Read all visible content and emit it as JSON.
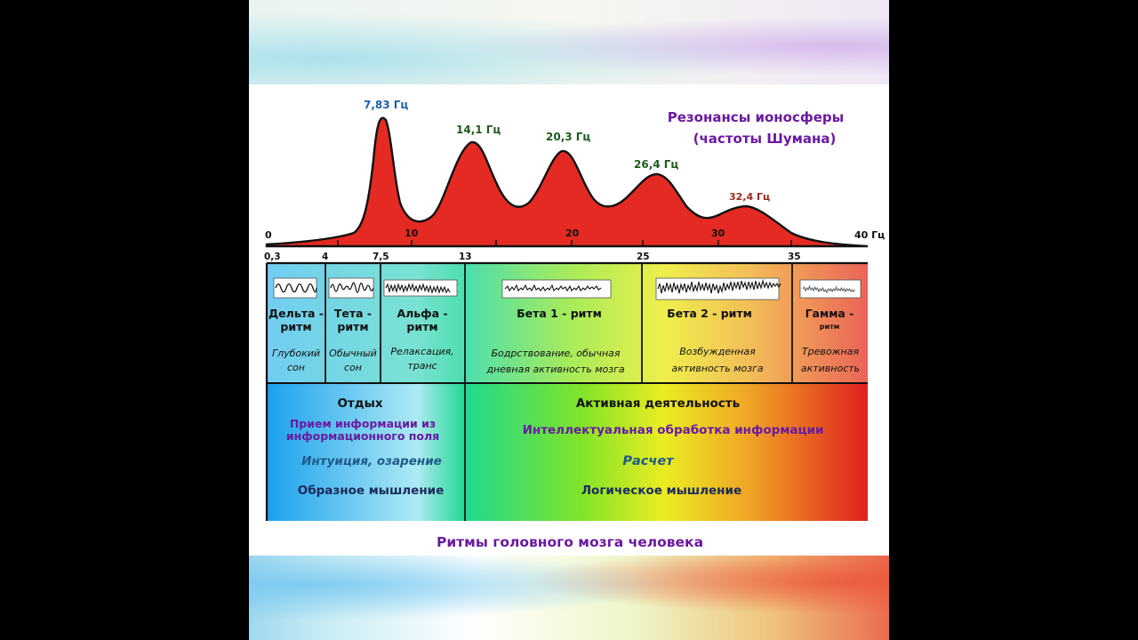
{
  "title": [
    "Резонансы ионосферы",
    "(частоты Шумана)"
  ],
  "peaks": [
    {
      "label": "7,83 Гц",
      "color": "#1f5fb0"
    },
    {
      "label": "14,1 Гц",
      "color": "#1f5a1f"
    },
    {
      "label": "20,3 Гц",
      "color": "#1f5a1f"
    },
    {
      "label": "26,4 Гц",
      "color": "#1f5a1f"
    },
    {
      "label": "32,4 Гц",
      "color": "#9a2a1a"
    }
  ],
  "top_axis_ticks": [
    "0",
    "10",
    "20",
    "30",
    "40 Гц"
  ],
  "bottom_axis_ticks": [
    "0,3",
    "4",
    "7,5",
    "13",
    "25",
    "35"
  ],
  "rhythms": [
    {
      "name": [
        "Дельта -",
        "ритм"
      ],
      "state": [
        "Глубокий",
        "сон"
      ]
    },
    {
      "name": [
        "Тета -",
        "ритм"
      ],
      "state": [
        "Обычный",
        "сон"
      ]
    },
    {
      "name": [
        "Альфа -",
        "ритм"
      ],
      "state": [
        "Релаксация,",
        "транс"
      ]
    },
    {
      "name": [
        "Бета 1 - ритм"
      ],
      "state": [
        "Бодрствование, обычная",
        "дневная активность мозга"
      ]
    },
    {
      "name": [
        "Бета 2 - ритм"
      ],
      "state": [
        "Возбужденная",
        "активность мозга"
      ]
    },
    {
      "name": [
        "Гамма -",
        "ритм"
      ],
      "state": [
        "Тревожная",
        "активность"
      ]
    }
  ],
  "rest": {
    "heading": "Отдых",
    "lines": [
      "Прием информации из",
      "информационного  поля"
    ],
    "intuition": "Интуиция, озарение",
    "thinking": "Образное мышление"
  },
  "active": {
    "heading": "Активная деятельность",
    "processing": "Интеллектуальная  обработка  информации",
    "calc": "Расчет",
    "thinking": "Логическое мышление"
  },
  "footer": "Ритмы  головного  мозга  человека",
  "colors": {
    "purple": "#6a1aa0",
    "teal": "#1f6a9a",
    "navy": "#1a2a5a"
  }
}
